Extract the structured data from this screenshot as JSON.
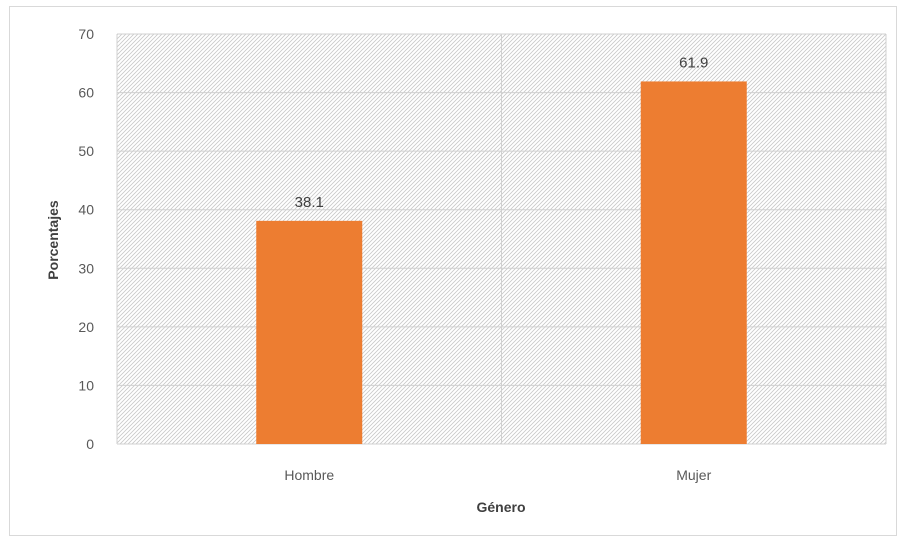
{
  "chart_data": {
    "type": "bar",
    "categories": [
      "Hombre",
      "Mujer"
    ],
    "values": [
      38.1,
      61.9
    ],
    "data_labels": [
      "38.1",
      "61.9"
    ],
    "title": "",
    "xlabel": "Género",
    "ylabel": "Porcentajes",
    "ylim": [
      0,
      70
    ],
    "yticks": [
      0,
      10,
      20,
      30,
      40,
      50,
      60,
      70
    ],
    "ytick_labels": [
      "0",
      "10",
      "20",
      "30",
      "40",
      "50",
      "60",
      "70"
    ],
    "grid": true,
    "plot_area_fill": "hatched",
    "legend": "none",
    "colors": {
      "bar": "#ED7D31",
      "grid": "#d0d0d0",
      "hatch": "#c8c8c8"
    }
  }
}
